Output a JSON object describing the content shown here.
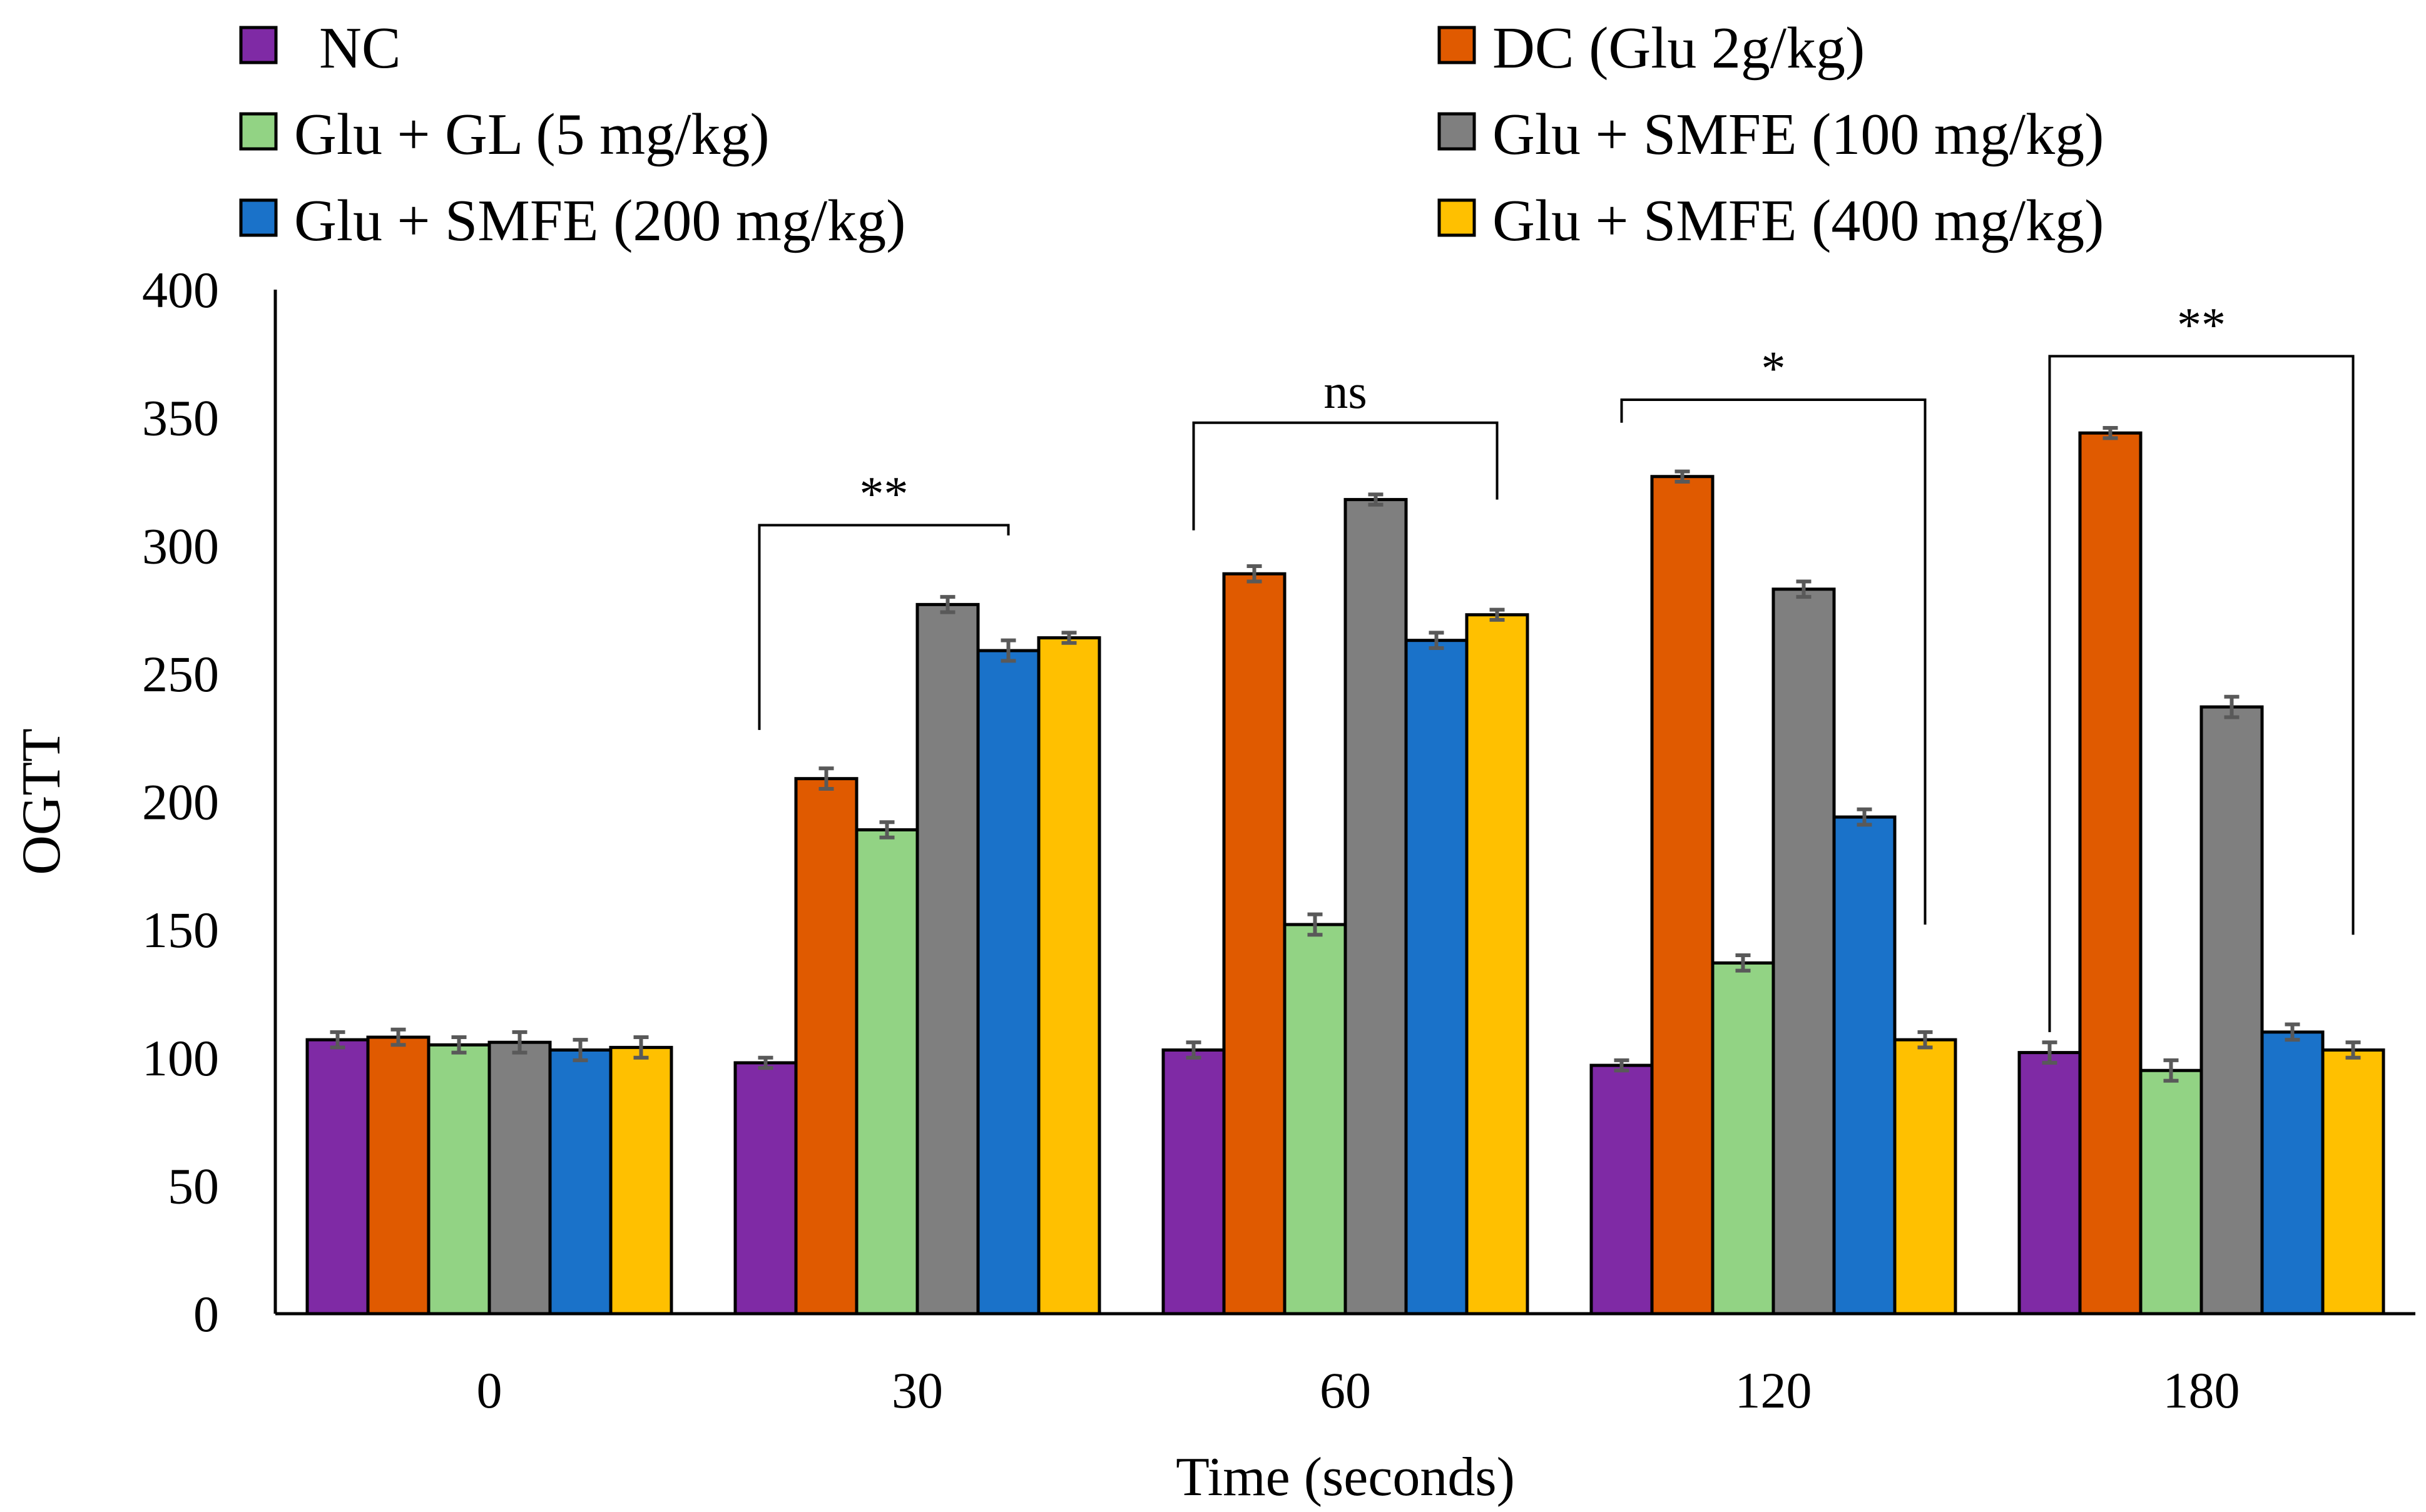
{
  "chart_data": {
    "type": "bar",
    "title": "",
    "xlabel": "Time (seconds)",
    "ylabel": "OGTT",
    "ylim": [
      0,
      400
    ],
    "yticks": [
      0,
      50,
      100,
      150,
      200,
      250,
      300,
      350,
      400
    ],
    "grid": false,
    "legend_position": "top",
    "categories": [
      "0",
      "30",
      "60",
      "120",
      "180"
    ],
    "series": [
      {
        "name": "NC",
        "color": "#7f2aa5",
        "values": [
          107,
          98,
          103,
          97,
          102
        ],
        "errors": [
          3,
          2,
          3,
          2,
          4
        ]
      },
      {
        "name": "DC (Glu 2g/kg)",
        "color": "#e05a00",
        "values": [
          108,
          209,
          289,
          327,
          344
        ],
        "errors": [
          3,
          4,
          3,
          2,
          2
        ]
      },
      {
        "name": "Glu + GL (5 mg/kg)",
        "color": "#92d384",
        "values": [
          105,
          189,
          152,
          137,
          95
        ],
        "errors": [
          3,
          3,
          4,
          3,
          4
        ]
      },
      {
        "name": "Glu + SMFE (100 mg/kg)",
        "color": "#7f7f7f",
        "values": [
          106,
          277,
          318,
          283,
          237
        ],
        "errors": [
          4,
          3,
          2,
          3,
          4
        ]
      },
      {
        "name": "Glu + SMFE (200 mg/kg)",
        "color": "#1a72c9",
        "values": [
          103,
          259,
          263,
          194,
          110
        ],
        "errors": [
          4,
          4,
          3,
          3,
          3
        ]
      },
      {
        "name": "Glu + SMFE (400 mg/kg)",
        "color": "#ffc000",
        "values": [
          104,
          264,
          273,
          107,
          103
        ],
        "errors": [
          4,
          2,
          2,
          3,
          3
        ]
      }
    ],
    "annotations": [
      {
        "label": "**",
        "category": "30"
      },
      {
        "label": "ns",
        "category": "60"
      },
      {
        "label": "*",
        "category": "120"
      },
      {
        "label": "**",
        "category": "180"
      }
    ]
  }
}
